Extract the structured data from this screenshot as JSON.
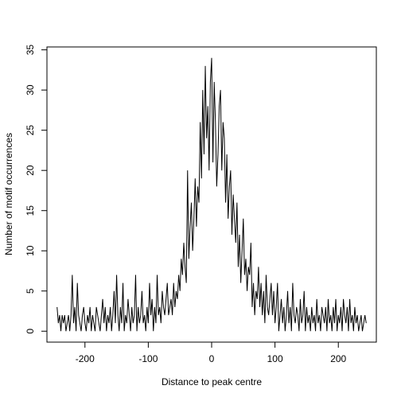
{
  "chart_data": {
    "type": "line",
    "x_label": "Distance to peak centre",
    "y_label": "Number of motif occurrences",
    "color": "#000000",
    "xlim": [
      -260,
      260
    ],
    "xticks": [
      -200,
      -100,
      0,
      100,
      200
    ],
    "ylim": [
      -1.36,
      35.36
    ],
    "yticks": [
      0,
      5,
      10,
      15,
      20,
      25,
      30,
      35
    ],
    "x": [
      -244,
      -242,
      -240,
      -238,
      -236,
      -234,
      -232,
      -230,
      -228,
      -226,
      -224,
      -222,
      -220,
      -218,
      -216,
      -214,
      -212,
      -210,
      -208,
      -206,
      -204,
      -202,
      -200,
      -198,
      -196,
      -194,
      -192,
      -190,
      -188,
      -186,
      -184,
      -182,
      -180,
      -178,
      -176,
      -174,
      -172,
      -170,
      -168,
      -166,
      -164,
      -162,
      -160,
      -158,
      -156,
      -154,
      -152,
      -150,
      -148,
      -146,
      -144,
      -142,
      -140,
      -138,
      -136,
      -134,
      -132,
      -130,
      -128,
      -126,
      -124,
      -122,
      -120,
      -118,
      -116,
      -114,
      -112,
      -110,
      -108,
      -106,
      -104,
      -102,
      -100,
      -98,
      -96,
      -94,
      -92,
      -90,
      -88,
      -86,
      -84,
      -82,
      -80,
      -78,
      -76,
      -74,
      -72,
      -70,
      -68,
      -66,
      -64,
      -62,
      -60,
      -58,
      -56,
      -54,
      -52,
      -50,
      -48,
      -46,
      -44,
      -42,
      -40,
      -38,
      -36,
      -34,
      -32,
      -30,
      -28,
      -26,
      -24,
      -22,
      -20,
      -18,
      -16,
      -14,
      -12,
      -10,
      -8,
      -6,
      -4,
      -2,
      0,
      2,
      4,
      6,
      8,
      10,
      12,
      14,
      16,
      18,
      20,
      22,
      24,
      26,
      28,
      30,
      32,
      34,
      36,
      38,
      40,
      42,
      44,
      46,
      48,
      50,
      52,
      54,
      56,
      58,
      60,
      62,
      64,
      66,
      68,
      70,
      72,
      74,
      76,
      78,
      80,
      82,
      84,
      86,
      88,
      90,
      92,
      94,
      96,
      98,
      100,
      102,
      104,
      106,
      108,
      110,
      112,
      114,
      116,
      118,
      120,
      122,
      124,
      126,
      128,
      130,
      132,
      134,
      136,
      138,
      140,
      142,
      144,
      146,
      148,
      150,
      152,
      154,
      156,
      158,
      160,
      162,
      164,
      166,
      168,
      170,
      172,
      174,
      176,
      178,
      180,
      182,
      184,
      186,
      188,
      190,
      192,
      194,
      196,
      198,
      200,
      202,
      204,
      206,
      208,
      210,
      212,
      214,
      216,
      218,
      220,
      222,
      224,
      226,
      228,
      230,
      232,
      234,
      236,
      238,
      240,
      242,
      244
    ],
    "values": [
      3,
      1,
      2,
      0,
      2,
      1,
      2,
      0,
      1,
      2,
      0,
      2,
      7,
      1,
      3,
      0,
      6,
      2,
      1,
      0,
      2,
      3,
      1,
      0,
      2,
      1,
      3,
      0,
      2,
      1,
      0,
      3,
      2,
      1,
      0,
      2,
      4,
      1,
      3,
      0,
      2,
      1,
      3,
      0,
      2,
      5,
      1,
      7,
      2,
      0,
      3,
      1,
      6,
      0,
      2,
      1,
      4,
      2,
      0,
      3,
      1,
      2,
      7,
      0,
      3,
      1,
      2,
      5,
      1,
      2,
      0,
      3,
      1,
      6,
      2,
      4,
      0,
      3,
      1,
      7,
      2,
      3,
      1,
      5,
      3,
      2,
      4,
      6,
      2,
      3,
      4,
      2,
      6,
      3,
      5,
      4,
      7,
      5,
      9,
      7,
      11,
      8,
      6,
      20,
      9,
      13,
      16,
      10,
      14,
      19,
      13,
      18,
      16,
      26,
      19,
      30,
      22,
      33,
      24,
      28,
      20,
      31,
      34,
      21,
      31,
      26,
      18,
      22,
      28,
      30,
      20,
      26,
      24,
      16,
      22,
      14,
      18,
      20,
      12,
      17,
      14,
      11,
      16,
      8,
      12,
      6,
      10,
      14,
      7,
      9,
      5,
      8,
      7,
      11,
      3,
      6,
      2,
      5,
      4,
      8,
      3,
      6,
      2,
      5,
      1,
      7,
      3,
      2,
      4,
      6,
      2,
      5,
      1,
      3,
      6,
      0,
      2,
      4,
      1,
      3,
      0,
      2,
      5,
      1,
      3,
      0,
      6,
      2,
      1,
      3,
      2,
      0,
      4,
      1,
      2,
      5,
      0,
      3,
      1,
      2,
      0,
      3,
      1,
      2,
      0,
      4,
      1,
      2,
      0,
      3,
      2,
      1,
      3,
      0,
      4,
      1,
      2,
      0,
      3,
      1,
      4,
      0,
      2,
      1,
      3,
      0,
      4,
      2,
      1,
      3,
      0,
      4,
      1,
      2,
      0,
      3,
      1,
      2,
      0,
      1,
      2,
      0,
      1,
      2,
      1
    ]
  }
}
